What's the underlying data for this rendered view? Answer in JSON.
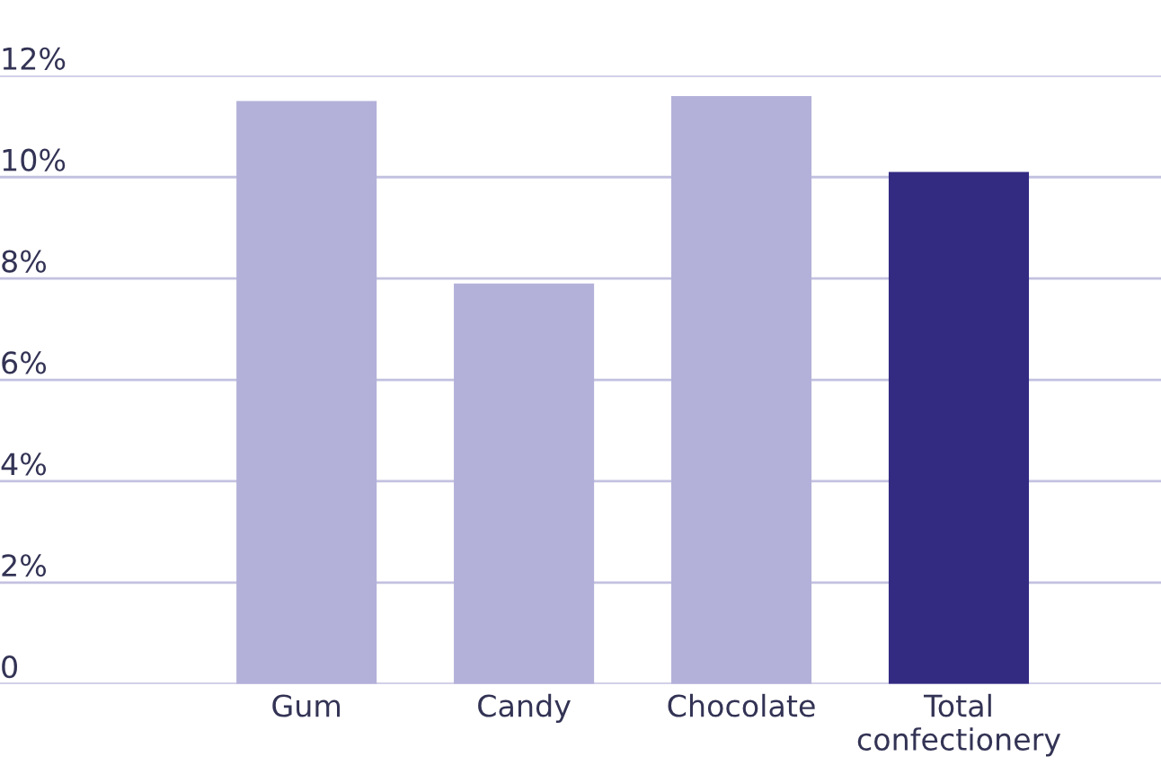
{
  "chart_data": {
    "type": "bar",
    "categories": [
      "Gum",
      "Candy",
      "Chocolate",
      "Total confectionery"
    ],
    "values": [
      11.5,
      7.9,
      11.6,
      10.1
    ],
    "colors": [
      "#b3b1d9",
      "#b3b1d9",
      "#b3b1d9",
      "#332a82"
    ],
    "ylim": [
      0,
      12
    ],
    "yticks": [
      {
        "value": 0,
        "label": "0"
      },
      {
        "value": 2,
        "label": "2%"
      },
      {
        "value": 4,
        "label": "4%"
      },
      {
        "value": 6,
        "label": "6%"
      },
      {
        "value": 8,
        "label": "8%"
      },
      {
        "value": 10,
        "label": "10%"
      },
      {
        "value": 12,
        "label": "12%"
      }
    ],
    "grid": "y"
  }
}
